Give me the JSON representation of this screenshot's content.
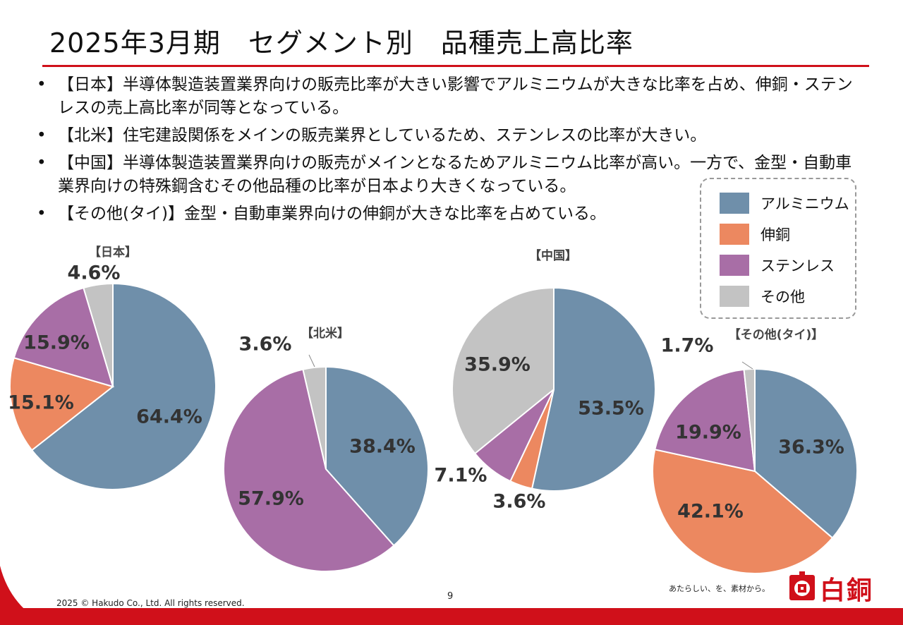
{
  "page": {
    "title": "2025年3月期　セグメント別　品種売上高比率",
    "bullets": [
      "【日本】半導体製造装置業界向けの販売比率が大きい影響でアルミニウムが大きな比率を占め、伸銅・ステンレスの売上高比率が同等となっている。",
      "【北米】住宅建設関係をメインの販売業界としているため、ステンレスの比率が大きい。",
      "【中国】半導体製造装置業界向けの販売がメインとなるためアルミニウム比率が高い。一方で、金型・自動車業界向けの特殊鋼含むその他品種の比率が日本より大きくなっている。",
      "【その他(タイ)】金型・自動車業界向けの伸銅が大きな比率を占めている。"
    ],
    "copyright": "2025 © Hakudo Co., Ltd. All rights reserved.",
    "page_number": "9",
    "tagline": "あたらしい、を、素材から。",
    "logo_text": "白銅"
  },
  "colors": {
    "アルミニウム": "#6f8faa",
    "伸銅": "#ec8860",
    "ステンレス": "#a86ea6",
    "その他": "#c3c3c3",
    "brand_red": "#d0101a"
  },
  "chart_data": [
    {
      "type": "pie",
      "title": "【日本】",
      "series": [
        {
          "values": [
            64.4,
            15.1,
            15.9,
            4.6
          ]
        }
      ],
      "categories": [
        "アルミニウム",
        "伸銅",
        "ステンレス",
        "その他"
      ],
      "value_labels": [
        "64.4%",
        "15.1%",
        "15.9%",
        "4.6%"
      ]
    },
    {
      "type": "pie",
      "title": "【北米】",
      "series": [
        {
          "values": [
            38.4,
            0,
            57.9,
            3.6
          ]
        }
      ],
      "categories": [
        "アルミニウム",
        "伸銅",
        "ステンレス",
        "その他"
      ],
      "value_labels": [
        "38.4%",
        "",
        "57.9%",
        "3.6%"
      ]
    },
    {
      "type": "pie",
      "title": "【中国】",
      "series": [
        {
          "values": [
            53.5,
            3.6,
            7.1,
            35.9
          ]
        }
      ],
      "categories": [
        "アルミニウム",
        "伸銅",
        "ステンレス",
        "その他"
      ],
      "value_labels": [
        "53.5%",
        "3.6%",
        "7.1%",
        "35.9%"
      ]
    },
    {
      "type": "pie",
      "title": "【その他(タイ)】",
      "series": [
        {
          "values": [
            36.3,
            42.1,
            19.9,
            1.7
          ]
        }
      ],
      "categories": [
        "アルミニウム",
        "伸銅",
        "ステンレス",
        "その他"
      ],
      "value_labels": [
        "36.3%",
        "42.1%",
        "19.9%",
        "1.7%"
      ]
    }
  ],
  "legend": {
    "items": [
      "アルミニウム",
      "伸銅",
      "ステンレス",
      "その他"
    ],
    "placement": "right"
  }
}
